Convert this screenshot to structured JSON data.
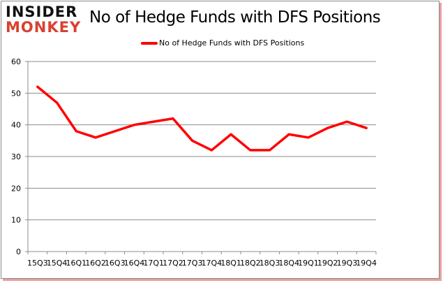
{
  "logo": {
    "line1": "INSIDER",
    "line2": "MONKEY"
  },
  "chart_data": {
    "type": "line",
    "title": "No of Hedge Funds with DFS Positions",
    "xlabel": "",
    "ylabel": "",
    "categories": [
      "15Q3",
      "15Q4",
      "16Q1",
      "16Q2",
      "16Q3",
      "16Q4",
      "17Q1",
      "17Q2",
      "17Q3",
      "17Q4",
      "18Q1",
      "18Q2",
      "18Q3",
      "18Q4",
      "19Q1",
      "19Q2",
      "19Q3",
      "19Q4"
    ],
    "series": [
      {
        "name": "No of Hedge Funds with DFS Positions",
        "color": "#ff0000",
        "values": [
          52,
          47,
          38,
          36,
          38,
          40,
          41,
          42,
          35,
          32,
          37,
          32,
          32,
          37,
          36,
          39,
          41,
          39
        ]
      }
    ],
    "ylim": [
      0,
      60
    ],
    "yticks": [
      0,
      10,
      20,
      30,
      40,
      50,
      60
    ],
    "grid": true,
    "legend": "top-center"
  }
}
